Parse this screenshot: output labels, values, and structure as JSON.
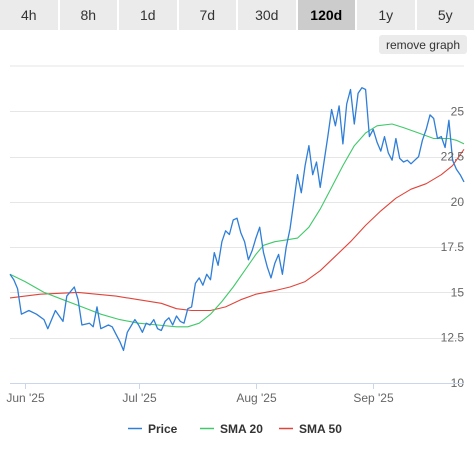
{
  "ranges": [
    "4h",
    "8h",
    "1d",
    "7d",
    "30d",
    "120d",
    "1y",
    "5y"
  ],
  "active_range": "120d",
  "remove_label": "remove graph",
  "chart_data": {
    "type": "line",
    "x_range": [
      "2025-05-28",
      "2025-09-25"
    ],
    "ylim": [
      10,
      27.5
    ],
    "y_ticks": [
      10,
      12.5,
      15,
      17.5,
      20,
      22.5,
      25
    ],
    "y_tick_labels": [
      "10",
      "12.5",
      "15",
      "17.5",
      "20",
      "22.5",
      "25"
    ],
    "x_ticks": [
      {
        "date": "2025-06-01",
        "label": "Jun '25"
      },
      {
        "date": "2025-07-01",
        "label": "Jul '25"
      },
      {
        "date": "2025-08-01",
        "label": "Aug '25"
      },
      {
        "date": "2025-09-01",
        "label": "Sep '25"
      }
    ],
    "grid": "horizontal",
    "legend_position": "bottom",
    "series": [
      {
        "name": "Price",
        "color": "#2f7ed8",
        "points": [
          [
            "2025-05-28",
            16.0
          ],
          [
            "2025-05-29",
            15.7
          ],
          [
            "2025-05-30",
            15.2
          ],
          [
            "2025-05-31",
            13.8
          ],
          [
            "2025-06-02",
            14.0
          ],
          [
            "2025-06-04",
            13.8
          ],
          [
            "2025-06-06",
            13.5
          ],
          [
            "2025-06-07",
            13.0
          ],
          [
            "2025-06-09",
            14.0
          ],
          [
            "2025-06-11",
            13.4
          ],
          [
            "2025-06-12",
            14.8
          ],
          [
            "2025-06-14",
            15.3
          ],
          [
            "2025-06-15",
            14.6
          ],
          [
            "2025-06-16",
            13.2
          ],
          [
            "2025-06-18",
            13.3
          ],
          [
            "2025-06-19",
            13.1
          ],
          [
            "2025-06-20",
            14.2
          ],
          [
            "2025-06-21",
            13.0
          ],
          [
            "2025-06-23",
            13.2
          ],
          [
            "2025-06-24",
            13.1
          ],
          [
            "2025-06-25",
            12.7
          ],
          [
            "2025-06-26",
            12.3
          ],
          [
            "2025-06-27",
            11.8
          ],
          [
            "2025-06-28",
            12.8
          ],
          [
            "2025-06-30",
            13.5
          ],
          [
            "2025-07-01",
            13.2
          ],
          [
            "2025-07-02",
            12.8
          ],
          [
            "2025-07-03",
            13.3
          ],
          [
            "2025-07-04",
            13.2
          ],
          [
            "2025-07-05",
            13.5
          ],
          [
            "2025-07-06",
            13.0
          ],
          [
            "2025-07-07",
            12.9
          ],
          [
            "2025-07-08",
            13.4
          ],
          [
            "2025-07-09",
            13.6
          ],
          [
            "2025-07-10",
            13.2
          ],
          [
            "2025-07-11",
            13.7
          ],
          [
            "2025-07-12",
            13.4
          ],
          [
            "2025-07-13",
            13.3
          ],
          [
            "2025-07-14",
            14.1
          ],
          [
            "2025-07-15",
            14.2
          ],
          [
            "2025-07-16",
            15.5
          ],
          [
            "2025-07-17",
            15.8
          ],
          [
            "2025-07-18",
            15.4
          ],
          [
            "2025-07-19",
            16.0
          ],
          [
            "2025-07-20",
            15.7
          ],
          [
            "2025-07-21",
            17.2
          ],
          [
            "2025-07-22",
            16.5
          ],
          [
            "2025-07-23",
            17.8
          ],
          [
            "2025-07-24",
            18.4
          ],
          [
            "2025-07-25",
            18.2
          ],
          [
            "2025-07-26",
            19.0
          ],
          [
            "2025-07-27",
            19.1
          ],
          [
            "2025-07-28",
            18.3
          ],
          [
            "2025-07-29",
            17.8
          ],
          [
            "2025-07-30",
            16.8
          ],
          [
            "2025-07-31",
            17.3
          ],
          [
            "2025-08-01",
            18.0
          ],
          [
            "2025-08-02",
            18.6
          ],
          [
            "2025-08-03",
            17.2
          ],
          [
            "2025-08-04",
            16.4
          ],
          [
            "2025-08-05",
            15.8
          ],
          [
            "2025-08-06",
            16.6
          ],
          [
            "2025-08-07",
            17.1
          ],
          [
            "2025-08-08",
            16.0
          ],
          [
            "2025-08-09",
            17.5
          ],
          [
            "2025-08-10",
            18.5
          ],
          [
            "2025-08-11",
            20.0
          ],
          [
            "2025-08-12",
            21.5
          ],
          [
            "2025-08-13",
            20.5
          ],
          [
            "2025-08-14",
            22.0
          ],
          [
            "2025-08-15",
            23.1
          ],
          [
            "2025-08-16",
            21.5
          ],
          [
            "2025-08-17",
            22.2
          ],
          [
            "2025-08-18",
            20.8
          ],
          [
            "2025-08-19",
            22.2
          ],
          [
            "2025-08-20",
            23.6
          ],
          [
            "2025-08-21",
            25.1
          ],
          [
            "2025-08-22",
            24.2
          ],
          [
            "2025-08-23",
            25.3
          ],
          [
            "2025-08-24",
            23.2
          ],
          [
            "2025-08-25",
            25.4
          ],
          [
            "2025-08-26",
            26.2
          ],
          [
            "2025-08-27",
            24.3
          ],
          [
            "2025-08-28",
            26.0
          ],
          [
            "2025-08-29",
            26.3
          ],
          [
            "2025-08-30",
            26.2
          ],
          [
            "2025-08-31",
            23.6
          ],
          [
            "2025-09-01",
            24.0
          ],
          [
            "2025-09-02",
            23.3
          ],
          [
            "2025-09-03",
            22.8
          ],
          [
            "2025-09-04",
            23.6
          ],
          [
            "2025-09-05",
            22.7
          ],
          [
            "2025-09-06",
            22.3
          ],
          [
            "2025-09-07",
            23.5
          ],
          [
            "2025-09-08",
            22.4
          ],
          [
            "2025-09-09",
            22.2
          ],
          [
            "2025-09-10",
            22.3
          ],
          [
            "2025-09-11",
            22.1
          ],
          [
            "2025-09-12",
            22.3
          ],
          [
            "2025-09-13",
            22.5
          ],
          [
            "2025-09-14",
            23.4
          ],
          [
            "2025-09-15",
            24.0
          ],
          [
            "2025-09-16",
            24.8
          ],
          [
            "2025-09-17",
            24.6
          ],
          [
            "2025-09-18",
            23.5
          ],
          [
            "2025-09-19",
            23.6
          ],
          [
            "2025-09-20",
            23.0
          ],
          [
            "2025-09-21",
            24.5
          ],
          [
            "2025-09-22",
            22.3
          ],
          [
            "2025-09-23",
            21.8
          ],
          [
            "2025-09-24",
            21.5
          ],
          [
            "2025-09-25",
            21.1
          ]
        ]
      },
      {
        "name": "SMA 20",
        "color": "#40c96a",
        "points": [
          [
            "2025-05-28",
            16.0
          ],
          [
            "2025-06-01",
            15.6
          ],
          [
            "2025-06-06",
            15.0
          ],
          [
            "2025-06-11",
            14.6
          ],
          [
            "2025-06-16",
            14.2
          ],
          [
            "2025-06-21",
            13.8
          ],
          [
            "2025-06-26",
            13.5
          ],
          [
            "2025-07-01",
            13.3
          ],
          [
            "2025-07-06",
            13.2
          ],
          [
            "2025-07-11",
            13.1
          ],
          [
            "2025-07-14",
            13.1
          ],
          [
            "2025-07-17",
            13.3
          ],
          [
            "2025-07-20",
            13.8
          ],
          [
            "2025-07-23",
            14.5
          ],
          [
            "2025-07-26",
            15.3
          ],
          [
            "2025-07-29",
            16.2
          ],
          [
            "2025-08-01",
            17.1
          ],
          [
            "2025-08-03",
            17.6
          ],
          [
            "2025-08-06",
            17.8
          ],
          [
            "2025-08-09",
            17.9
          ],
          [
            "2025-08-12",
            18.0
          ],
          [
            "2025-08-15",
            18.6
          ],
          [
            "2025-08-18",
            19.6
          ],
          [
            "2025-08-21",
            20.8
          ],
          [
            "2025-08-24",
            22.0
          ],
          [
            "2025-08-27",
            23.1
          ],
          [
            "2025-08-30",
            23.8
          ],
          [
            "2025-09-02",
            24.2
          ],
          [
            "2025-09-06",
            24.3
          ],
          [
            "2025-09-09",
            24.1
          ],
          [
            "2025-09-13",
            23.8
          ],
          [
            "2025-09-17",
            23.5
          ],
          [
            "2025-09-21",
            23.5
          ],
          [
            "2025-09-23",
            23.4
          ],
          [
            "2025-09-25",
            23.2
          ]
        ]
      },
      {
        "name": "SMA 50",
        "color": "#e0453b",
        "points": [
          [
            "2025-05-28",
            14.7
          ],
          [
            "2025-06-05",
            14.9
          ],
          [
            "2025-06-15",
            15.0
          ],
          [
            "2025-06-25",
            14.8
          ],
          [
            "2025-07-01",
            14.6
          ],
          [
            "2025-07-07",
            14.4
          ],
          [
            "2025-07-11",
            14.1
          ],
          [
            "2025-07-15",
            14.0
          ],
          [
            "2025-07-20",
            14.0
          ],
          [
            "2025-07-24",
            14.2
          ],
          [
            "2025-07-28",
            14.6
          ],
          [
            "2025-08-01",
            14.9
          ],
          [
            "2025-08-06",
            15.1
          ],
          [
            "2025-08-10",
            15.3
          ],
          [
            "2025-08-14",
            15.6
          ],
          [
            "2025-08-18",
            16.2
          ],
          [
            "2025-08-22",
            17.0
          ],
          [
            "2025-08-26",
            17.8
          ],
          [
            "2025-08-30",
            18.7
          ],
          [
            "2025-09-03",
            19.5
          ],
          [
            "2025-09-07",
            20.2
          ],
          [
            "2025-09-11",
            20.7
          ],
          [
            "2025-09-15",
            21.0
          ],
          [
            "2025-09-19",
            21.5
          ],
          [
            "2025-09-22",
            22.0
          ],
          [
            "2025-09-25",
            22.9
          ]
        ]
      }
    ]
  }
}
